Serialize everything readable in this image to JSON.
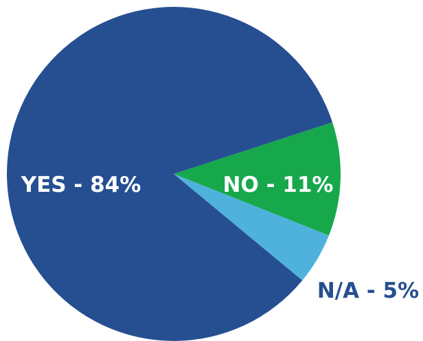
{
  "chart_data": {
    "type": "pie",
    "categories": [
      "YES",
      "NO",
      "N/A"
    ],
    "values": [
      84,
      11,
      5
    ],
    "slice_labels": [
      "YES - 84%",
      "NO - 11%",
      "N/A - 5%"
    ],
    "colors": [
      "#264f92",
      "#17a84c",
      "#4fb2dc"
    ],
    "label_colors": [
      "#ffffff",
      "#ffffff",
      "#264f92"
    ],
    "start_angle_deg": -18,
    "direction": "clockwise",
    "title": "",
    "legend": "none"
  }
}
